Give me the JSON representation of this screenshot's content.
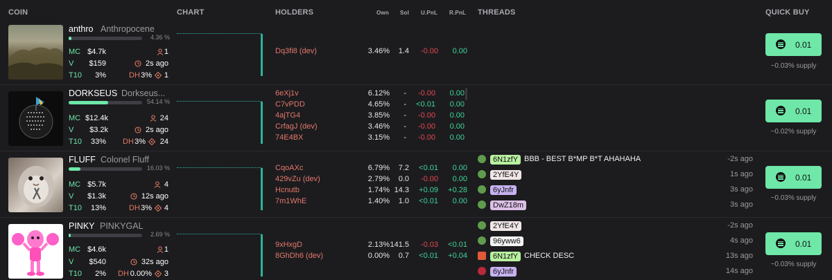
{
  "columns": {
    "coin": "COIN",
    "chart": "CHART",
    "holders": "HOLDERS",
    "own": "Own",
    "sol": "Sol",
    "upnl": "U.PnL",
    "rpnl": "R.PnL",
    "threads": "THREADS",
    "quick_buy": "QUICK BUY"
  },
  "colors": {
    "accent": "#6ee7a8",
    "bar": "#2fb39b",
    "negative": "#e5484d",
    "positive": "#3ed598",
    "holder": "#e4786a"
  },
  "rows": [
    {
      "ticker": "anthro",
      "name": "Anthropocene",
      "progress_pct": "4.36 %",
      "progress": 0.0436,
      "mc_label": "MC",
      "mc": "$4.7k",
      "v_label": "V",
      "v": "$159",
      "t10_label": "T10",
      "t10": "3%",
      "holders_count": "1",
      "age": "2s ago",
      "dh_label": "DH",
      "dh": "3%",
      "dh_count": "1",
      "holders": [
        {
          "name": "Dq3fi8 (dev)",
          "own": "3.46%",
          "sol": "1.4",
          "upnl": "-0.00",
          "rpnl": "0.00"
        }
      ],
      "threads": [],
      "buy": "0.01",
      "supply": "~0.03% supply"
    },
    {
      "ticker": "DORKSEUS",
      "name": "Dorkseus...",
      "progress_pct": "54.14 %",
      "progress": 0.5414,
      "mc_label": "MC",
      "mc": "$12.4k",
      "v_label": "V",
      "v": "$3.2k",
      "t10_label": "T10",
      "t10": "33%",
      "holders_count": "24",
      "age": "2s ago",
      "dh_label": "DH",
      "dh": "3%",
      "dh_count": "24",
      "holders": [
        {
          "name": "6eXj1v",
          "own": "6.12%",
          "sol": "-",
          "upnl": "-0.00",
          "rpnl": "0.00"
        },
        {
          "name": "C7vPDD",
          "own": "4.65%",
          "sol": "-",
          "upnl": "<0.01",
          "rpnl": "0.00"
        },
        {
          "name": "4ajTG4",
          "own": "3.85%",
          "sol": "-",
          "upnl": "-0.00",
          "rpnl": "0.00"
        },
        {
          "name": "CrfagJ (dev)",
          "own": "3.46%",
          "sol": "-",
          "upnl": "-0.00",
          "rpnl": "0.00"
        },
        {
          "name": "74E4BX",
          "own": "3.15%",
          "sol": "-",
          "upnl": "-0.00",
          "rpnl": "0.00"
        }
      ],
      "threads": [],
      "buy": "0.01",
      "supply": "~0.02% supply"
    },
    {
      "ticker": "FLUFF",
      "name": "Colonel Fluff",
      "progress_pct": "16.03 %",
      "progress": 0.1603,
      "mc_label": "MC",
      "mc": "$5.7k",
      "v_label": "V",
      "v": "$1.3k",
      "t10_label": "T10",
      "t10": "13%",
      "holders_count": "4",
      "age": "12s ago",
      "dh_label": "DH",
      "dh": "3%",
      "dh_count": "4",
      "holders": [
        {
          "name": "CqoAXc",
          "own": "6.79%",
          "sol": "7.2",
          "upnl": "<0.01",
          "rpnl": "0.00"
        },
        {
          "name": "429vZu (dev)",
          "own": "2.79%",
          "sol": "0.0",
          "upnl": "-0.00",
          "rpnl": "0.00"
        },
        {
          "name": "Hcnutb",
          "own": "1.74%",
          "sol": "14.3",
          "upnl": "+0.09",
          "rpnl": "+0.28"
        },
        {
          "name": "7m1WhE",
          "own": "1.40%",
          "sol": "1.0",
          "upnl": "<0.01",
          "rpnl": "0.00"
        }
      ],
      "threads": [
        {
          "user": "6N1zfY",
          "msg": "BBB - BEST B*MP B*T AHAHAHA",
          "age": "-2s ago"
        },
        {
          "user": "2YfE4Y",
          "msg": "",
          "age": "1s ago"
        },
        {
          "user": "6yJnfr",
          "msg": "",
          "age": "3s ago"
        },
        {
          "user": "DwZ18m",
          "msg": "",
          "age": "3s ago"
        }
      ],
      "buy": "0.01",
      "supply": "~0.03% supply"
    },
    {
      "ticker": "PINKY",
      "name": "PINKYGAL",
      "progress_pct": "2.69 %",
      "progress": 0.0269,
      "mc_label": "MC",
      "mc": "$4.6k",
      "v_label": "V",
      "v": "$540",
      "t10_label": "T10",
      "t10": "2%",
      "holders_count": "1",
      "age": "32s ago",
      "dh_label": "DH",
      "dh": "0.00%",
      "dh_count": "3",
      "holders": [
        {
          "name": "9xHxgD",
          "own": "2.13%",
          "sol": "141.5",
          "upnl": "-0.03",
          "rpnl": "<0.01"
        },
        {
          "name": "8GhDh6 (dev)",
          "own": "0.00%",
          "sol": "0.7",
          "upnl": "<0.01",
          "rpnl": "+0.04"
        }
      ],
      "threads": [
        {
          "user": "2YfE4Y",
          "msg": "",
          "age": "-2s ago"
        },
        {
          "user": "96yww6",
          "msg": "",
          "age": "4s ago"
        },
        {
          "user": "6N1zfY",
          "msg": "CHECK DESC",
          "age": "13s ago"
        },
        {
          "user": "6yJnfr",
          "msg": "",
          "age": "14s ago"
        }
      ],
      "buy": "0.01",
      "supply": "~0.03% supply"
    }
  ]
}
